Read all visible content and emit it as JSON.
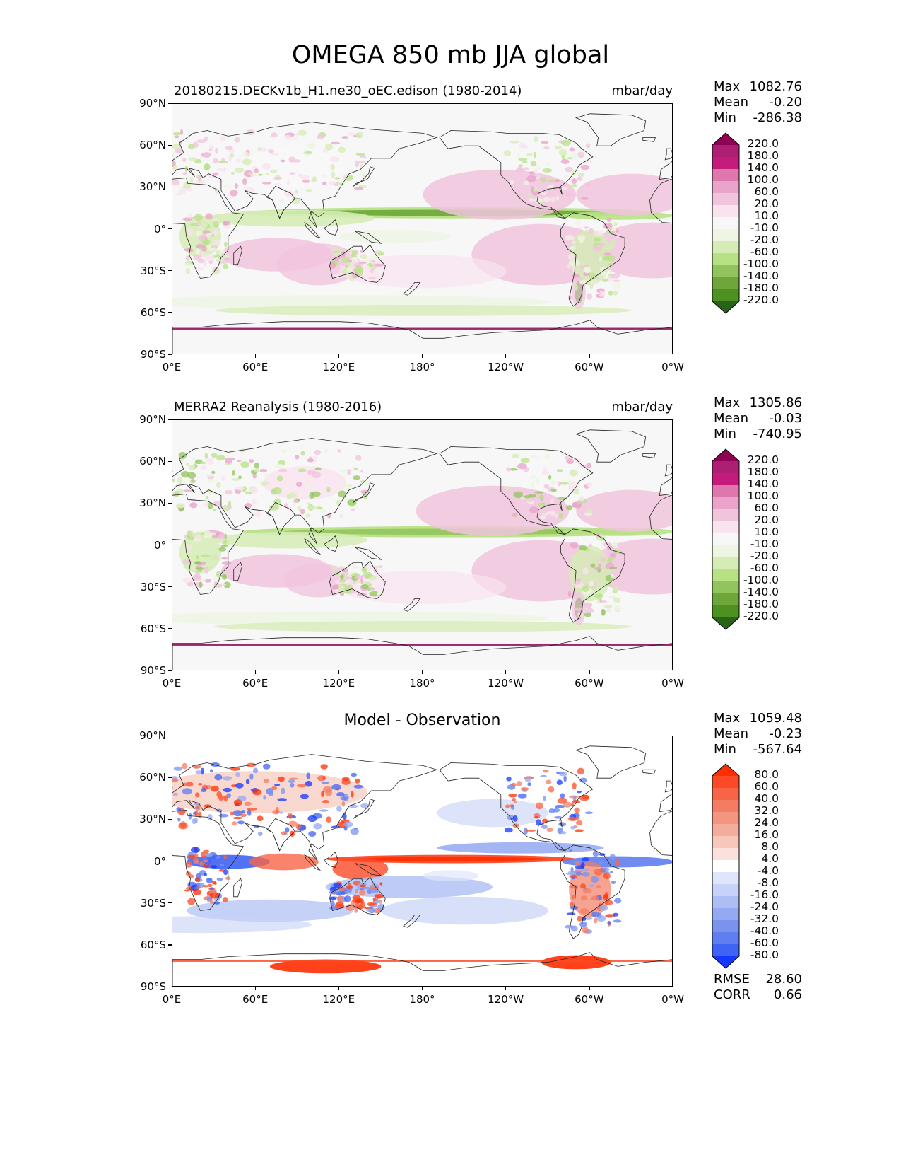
{
  "title": "OMEGA 850 mb JJA global",
  "lat_ticks": [
    "90°N",
    "60°N",
    "30°N",
    "0°",
    "30°S",
    "60°S",
    "90°S"
  ],
  "lon_ticks": [
    "0°E",
    "60°E",
    "120°E",
    "180°",
    "120°W",
    "60°W",
    "0°W"
  ],
  "panels": [
    {
      "id": "model",
      "title": "20180215.DECKv1b_H1.ne30_oEC.edison (1980-2014)",
      "units": "mbar/day",
      "stats": {
        "max_label": "Max",
        "max": "1082.76",
        "mean_label": "Mean",
        "mean": "-0.20",
        "min_label": "Min",
        "min": "-286.38"
      },
      "colorbar": {
        "labels": [
          "220.0",
          "180.0",
          "140.0",
          "100.0",
          "60.0",
          "20.0",
          "10.0",
          "-10.0",
          "-20.0",
          "-60.0",
          "-100.0",
          "-140.0",
          "-180.0",
          "-220.0"
        ],
        "colors": [
          "#8e0152",
          "#ad1f72",
          "#c51b7d",
          "#de77ae",
          "#eaa3cb",
          "#f1c4dd",
          "#f9e3ef",
          "#f7f7f7",
          "#eef5e2",
          "#d5ecb5",
          "#b8e186",
          "#92c45d",
          "#6ea63a",
          "#4d9221",
          "#276419"
        ]
      }
    },
    {
      "id": "obs",
      "title": "MERRA2 Reanalysis (1980-2016)",
      "units": "mbar/day",
      "stats": {
        "max_label": "Max",
        "max": "1305.86",
        "mean_label": "Mean",
        "mean": "-0.03",
        "min_label": "Min",
        "min": "-740.95"
      },
      "colorbar": {
        "labels": [
          "220.0",
          "180.0",
          "140.0",
          "100.0",
          "60.0",
          "20.0",
          "10.0",
          "-10.0",
          "-20.0",
          "-60.0",
          "-100.0",
          "-140.0",
          "-180.0",
          "-220.0"
        ],
        "colors": [
          "#8e0152",
          "#ad1f72",
          "#c51b7d",
          "#de77ae",
          "#eaa3cb",
          "#f1c4dd",
          "#f9e3ef",
          "#f7f7f7",
          "#eef5e2",
          "#d5ecb5",
          "#b8e186",
          "#92c45d",
          "#6ea63a",
          "#4d9221",
          "#276419"
        ]
      }
    },
    {
      "id": "diff",
      "title": "Model - Observation",
      "units": "",
      "stats": {
        "max_label": "Max",
        "max": "1059.48",
        "mean_label": "Mean",
        "mean": "-0.23",
        "min_label": "Min",
        "min": "-567.64"
      },
      "metrics": {
        "rmse_label": "RMSE",
        "rmse": "28.60",
        "corr_label": "CORR",
        "corr": "0.66"
      },
      "colorbar": {
        "labels": [
          "80.0",
          "60.0",
          "40.0",
          "32.0",
          "24.0",
          "16.0",
          "8.0",
          "4.0",
          "-4.0",
          "-8.0",
          "-16.0",
          "-24.0",
          "-32.0",
          "-40.0",
          "-60.0",
          "-80.0"
        ],
        "colors": [
          "#ff2d00",
          "#fb4a25",
          "#f76546",
          "#f47c63",
          "#f3957f",
          "#f4ad9c",
          "#f7c7bc",
          "#fbe1db",
          "#ffffff",
          "#dfe6fb",
          "#c6d2f7",
          "#adbef4",
          "#93a9f1",
          "#7a94ee",
          "#5f7ef0",
          "#3f63f5",
          "#1438ff"
        ]
      }
    }
  ],
  "chart_data": {
    "type": "heatmap",
    "title": "OMEGA 850 mb JJA global",
    "xlabel": "",
    "ylabel": "",
    "x_range": [
      0,
      360
    ],
    "y_range": [
      -90,
      90
    ],
    "x_ticks": [
      "0°E",
      "60°E",
      "120°E",
      "180°",
      "120°W",
      "60°W",
      "0°W"
    ],
    "y_ticks": [
      "90°N",
      "60°N",
      "30°N",
      "0°",
      "30°S",
      "60°S",
      "90°S"
    ],
    "units": "mbar/day",
    "series": [
      {
        "name": "20180215.DECKv1b_H1.ne30_oEC.edison (1980-2014)",
        "max": 1082.76,
        "mean": -0.2,
        "min": -286.38
      },
      {
        "name": "MERRA2 Reanalysis (1980-2016)",
        "max": 1305.86,
        "mean": -0.03,
        "min": -740.95
      },
      {
        "name": "Model - Observation",
        "max": 1059.48,
        "mean": -0.23,
        "min": -567.64,
        "rmse": 28.6,
        "corr": 0.66
      }
    ]
  }
}
